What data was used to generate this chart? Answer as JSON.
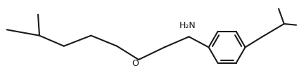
{
  "background": "#ffffff",
  "line_color": "#1a1a1a",
  "line_width": 1.5,
  "text_color": "#1a1a1a",
  "nh2_label": "H₂N",
  "o_label": "O",
  "font_size": 9
}
